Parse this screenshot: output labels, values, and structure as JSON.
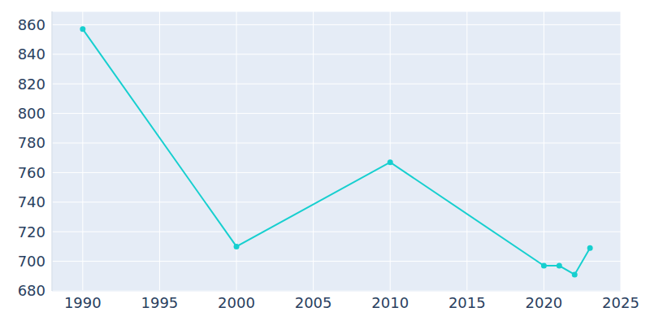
{
  "chart_data": {
    "type": "line",
    "x": [
      1990,
      2000,
      2010,
      2020,
      2021,
      2022,
      2023
    ],
    "values": [
      857,
      710,
      767,
      697,
      697,
      691,
      709
    ],
    "color": "#17cfcf",
    "xlim": [
      1988,
      2025
    ],
    "ylim": [
      680,
      869
    ],
    "xticks": [
      1990,
      1995,
      2000,
      2005,
      2010,
      2015,
      2020,
      2025
    ],
    "yticks": [
      680,
      700,
      720,
      740,
      760,
      780,
      800,
      820,
      840,
      860
    ],
    "grid": true,
    "marker": "circle"
  }
}
